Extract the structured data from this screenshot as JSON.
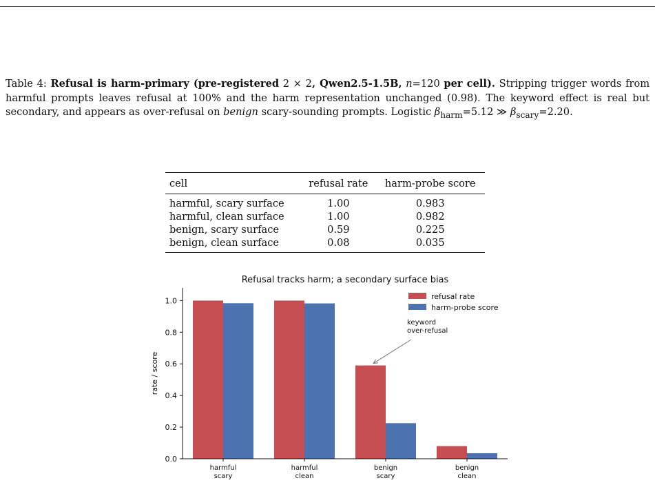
{
  "caption": {
    "table_num": "Table 4:",
    "bold_lead": "Refusal is harm-primary (pre-registered",
    "two": "2",
    "times": "×",
    "bold_model": ", Qwen2.5-1.5B,",
    "n_italic": "n",
    "n_val": "=120",
    "bold_tail": "per cell).",
    "text1": "Stripping trigger words from harmful prompts leaves refusal at 100% and the harm representation unchanged (0.98). The keyword effect is real but secondary, and appears as over-refusal on",
    "benign_italic": "benign",
    "text2": "scary-sounding prompts. Logistic",
    "beta": "β",
    "harm_sub": "harm",
    "harm_val": "=5.12",
    "gg": "≫",
    "scary_sub": "scary",
    "scary_val": "=2.20."
  },
  "table": {
    "headers": [
      "cell",
      "refusal rate",
      "harm-probe score"
    ],
    "rows": [
      [
        "harmful, scary surface",
        "1.00",
        "0.983"
      ],
      [
        "harmful, clean surface",
        "1.00",
        "0.982"
      ],
      [
        "benign, scary surface",
        "0.59",
        "0.225"
      ],
      [
        "benign, clean surface",
        "0.08",
        "0.035"
      ]
    ]
  },
  "chart_data": {
    "type": "bar",
    "title": "Refusal tracks harm; a secondary surface bias",
    "xlabel": "",
    "ylabel": "rate / score",
    "ylim": [
      0,
      1.08
    ],
    "yticks": [
      "0.0",
      "0.2",
      "0.4",
      "0.6",
      "0.8",
      "1.0"
    ],
    "categories": [
      [
        "harmful",
        "scary"
      ],
      [
        "harmful",
        "clean"
      ],
      [
        "benign",
        "scary"
      ],
      [
        "benign",
        "clean"
      ]
    ],
    "series": [
      {
        "name": "refusal rate",
        "color": "#c44e52",
        "values": [
          1.0,
          1.0,
          0.59,
          0.08
        ]
      },
      {
        "name": "harm-probe score",
        "color": "#4c72b0",
        "values": [
          0.983,
          0.982,
          0.225,
          0.035
        ]
      }
    ],
    "legend": "top-right",
    "grid": false,
    "annotation": {
      "lines": [
        "keyword",
        "over-refusal"
      ],
      "target_category": 2,
      "target_series": 0
    }
  }
}
